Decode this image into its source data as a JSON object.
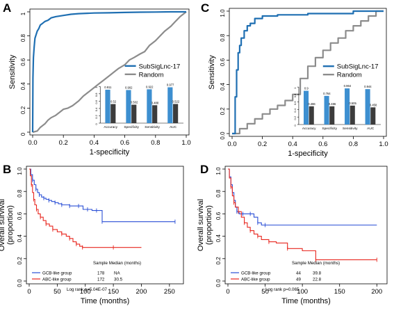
{
  "colors": {
    "blue": "#1f6fb2",
    "grey": "#8c8c8c",
    "darkgrey": "#555555",
    "km_blue": "#2a4fd6",
    "km_red": "#e8261e",
    "barblue": "#3d8fd0",
    "bargrey": "#3c3c3c",
    "axis": "#000000"
  },
  "chart_data": [
    {
      "panel": "A",
      "type": "line",
      "xlabel": "1-specificity",
      "ylabel": "Sensitivity",
      "xlim": [
        0,
        1
      ],
      "ylim": [
        0,
        1
      ],
      "xticks": [
        "0.0",
        "0.2",
        "0.4",
        "0.6",
        "0.8",
        "1.0"
      ],
      "yticks": [
        "0",
        "0.2",
        "0.4",
        "0.6",
        "0.8",
        "1"
      ],
      "legend": {
        "placement": "right",
        "entries": [
          "SubSigLnc-17",
          "Random"
        ]
      },
      "series": [
        {
          "name": "SubSigLnc-17",
          "color": "blue",
          "x": [
            0,
            0.002,
            0.005,
            0.01,
            0.015,
            0.02,
            0.03,
            0.04,
            0.05,
            0.06,
            0.08,
            0.1,
            0.12,
            0.15,
            0.2,
            0.25,
            0.3,
            0.4,
            0.5,
            0.6,
            0.7,
            0.8,
            0.9,
            1.0
          ],
          "y": [
            0,
            0.45,
            0.62,
            0.71,
            0.78,
            0.8,
            0.84,
            0.86,
            0.89,
            0.9,
            0.92,
            0.93,
            0.95,
            0.96,
            0.97,
            0.98,
            0.985,
            0.99,
            0.992,
            0.995,
            0.997,
            0.998,
            1.0,
            1.0
          ]
        },
        {
          "name": "Random",
          "color": "grey",
          "x": [
            0,
            0.03,
            0.05,
            0.08,
            0.1,
            0.12,
            0.15,
            0.18,
            0.2,
            0.23,
            0.26,
            0.3,
            0.33,
            0.36,
            0.4,
            0.43,
            0.46,
            0.5,
            0.53,
            0.56,
            0.6,
            0.63,
            0.66,
            0.7,
            0.73,
            0.76,
            0.8,
            0.83,
            0.86,
            0.9,
            0.93,
            0.96,
            1.0
          ],
          "y": [
            0,
            0.01,
            0.04,
            0.07,
            0.1,
            0.12,
            0.14,
            0.17,
            0.19,
            0.2,
            0.22,
            0.26,
            0.3,
            0.33,
            0.37,
            0.4,
            0.43,
            0.47,
            0.5,
            0.53,
            0.56,
            0.6,
            0.62,
            0.65,
            0.67,
            0.72,
            0.76,
            0.8,
            0.84,
            0.88,
            0.92,
            0.96,
            1.0
          ]
        }
      ],
      "inset": {
        "type": "bar",
        "categories": [
          "Accuracy",
          "Specificity",
          "Sensitivity",
          "AUC"
        ],
        "yticks": [
          "0",
          "0.2",
          "0.4",
          "0.6",
          "0.8",
          "1"
        ],
        "series": [
          {
            "color": "barblue",
            "values": [
              0.911,
              0.902,
              0.922,
              0.977
            ],
            "labels": [
              "0.911",
              "0.902",
              "0.922",
              "0.977"
            ]
          },
          {
            "color": "bargrey",
            "values": [
              0.52,
              0.502,
              0.488,
              0.522
            ],
            "labels": [
              "0.52",
              "0.502",
              "0.488",
              "0.522"
            ]
          }
        ]
      }
    },
    {
      "panel": "C",
      "type": "line",
      "xlabel": "1-specificity",
      "ylabel": "Sensitivity",
      "xlim": [
        0,
        1
      ],
      "ylim": [
        0,
        1
      ],
      "xticks": [
        "0.0",
        "0.2",
        "0.4",
        "0.6",
        "0.8",
        "1.0"
      ],
      "yticks": [
        "0.0",
        "0.2",
        "0.4",
        "0.6",
        "0.8",
        "1.0"
      ],
      "legend": {
        "placement": "right",
        "entries": [
          "SubSigLnc-17",
          "Random"
        ]
      },
      "series": [
        {
          "name": "SubSigLnc-17",
          "color": "blue",
          "x": [
            0,
            0.02,
            0.02,
            0.03,
            0.03,
            0.04,
            0.04,
            0.05,
            0.05,
            0.06,
            0.06,
            0.08,
            0.08,
            0.1,
            0.1,
            0.12,
            0.12,
            0.15,
            0.15,
            0.2,
            0.2,
            0.3,
            0.3,
            0.5,
            0.5,
            0.8,
            0.8,
            1.0
          ],
          "y": [
            0,
            0,
            0.3,
            0.3,
            0.52,
            0.52,
            0.66,
            0.66,
            0.72,
            0.72,
            0.78,
            0.78,
            0.84,
            0.84,
            0.88,
            0.88,
            0.9,
            0.9,
            0.94,
            0.94,
            0.96,
            0.96,
            0.97,
            0.97,
            0.98,
            0.98,
            1.0,
            1.0
          ]
        },
        {
          "name": "Random",
          "color": "grey",
          "x": [
            0,
            0.05,
            0.05,
            0.1,
            0.1,
            0.15,
            0.15,
            0.2,
            0.2,
            0.25,
            0.25,
            0.3,
            0.3,
            0.35,
            0.35,
            0.4,
            0.4,
            0.45,
            0.45,
            0.5,
            0.5,
            0.55,
            0.55,
            0.6,
            0.6,
            0.65,
            0.65,
            0.7,
            0.7,
            0.75,
            0.75,
            0.8,
            0.8,
            0.85,
            0.85,
            0.9,
            0.9,
            0.95,
            0.95,
            1.0
          ],
          "y": [
            0,
            0,
            0.04,
            0.04,
            0.08,
            0.08,
            0.12,
            0.12,
            0.16,
            0.16,
            0.2,
            0.2,
            0.23,
            0.23,
            0.27,
            0.27,
            0.32,
            0.32,
            0.45,
            0.45,
            0.55,
            0.55,
            0.62,
            0.62,
            0.68,
            0.68,
            0.74,
            0.74,
            0.78,
            0.78,
            0.84,
            0.84,
            0.88,
            0.88,
            0.92,
            0.92,
            0.96,
            0.96,
            1.0,
            1.0
          ]
        }
      ],
      "inset": {
        "type": "bar",
        "categories": [
          "Accuracy",
          "Specificity",
          "Sensitivity",
          "AUC"
        ],
        "yticks": [
          "0",
          "0.2",
          "0.4",
          "0.6",
          "0.8",
          "1"
        ],
        "series": [
          {
            "color": "barblue",
            "values": [
              0.9,
              0.764,
              0.964,
              0.944
            ],
            "labels": [
              "0.9",
              "0.764",
              "0.964",
              "0.944"
            ]
          },
          {
            "color": "bargrey",
            "values": [
              0.486,
              0.486,
              0.505,
              0.458
            ],
            "labels": [
              "0.486",
              "0.486",
              "0.505",
              "0.458"
            ]
          }
        ]
      }
    },
    {
      "panel": "B",
      "type": "line",
      "xlabel": "Time (months)",
      "ylabel": "Overall survival\n(proportion)",
      "xlim": [
        0,
        270
      ],
      "ylim": [
        0,
        1
      ],
      "xticks": [
        "0",
        "50",
        "100",
        "150",
        "200",
        "250"
      ],
      "yticks": [
        "0.0",
        "0.2",
        "0.4",
        "0.6",
        "0.8",
        "1.0"
      ],
      "legend": {
        "placement": "bottom-left",
        "header": "Sample  Median (months)",
        "entries": [
          {
            "name": "GCB-like group",
            "color": "km_blue",
            "n": "178",
            "median": "NA"
          },
          {
            "name": "ABC-like group",
            "color": "km_red",
            "n": "172",
            "median": "30.5"
          }
        ],
        "note": "Log rank p=5.04E-07"
      },
      "series": [
        {
          "name": "GCB-like group",
          "color": "km_blue",
          "x": [
            0,
            3,
            6,
            9,
            12,
            15,
            18,
            22,
            26,
            30,
            35,
            40,
            46,
            52,
            58,
            65,
            72,
            80,
            88,
            96,
            104,
            112,
            120,
            126,
            130,
            180,
            260
          ],
          "y": [
            1.0,
            0.95,
            0.9,
            0.86,
            0.82,
            0.79,
            0.77,
            0.75,
            0.74,
            0.73,
            0.72,
            0.71,
            0.7,
            0.69,
            0.68,
            0.68,
            0.67,
            0.67,
            0.67,
            0.64,
            0.64,
            0.63,
            0.63,
            0.63,
            0.53,
            0.53,
            0.53
          ]
        },
        {
          "name": "ABC-like group",
          "color": "km_red",
          "x": [
            0,
            2,
            4,
            6,
            8,
            10,
            13,
            16,
            20,
            25,
            30,
            36,
            42,
            50,
            58,
            66,
            72,
            78,
            84,
            90,
            95,
            100,
            150,
            200
          ],
          "y": [
            1.0,
            0.94,
            0.86,
            0.79,
            0.73,
            0.68,
            0.64,
            0.6,
            0.57,
            0.54,
            0.51,
            0.49,
            0.46,
            0.44,
            0.42,
            0.4,
            0.38,
            0.35,
            0.33,
            0.31,
            0.3,
            0.3,
            0.3,
            0.3
          ]
        }
      ]
    },
    {
      "panel": "D",
      "type": "line",
      "xlabel": "Time (months)",
      "ylabel": "Overall survival\n(proportion)",
      "xlim": [
        0,
        210
      ],
      "ylim": [
        0,
        1
      ],
      "xticks": [
        "0",
        "50",
        "100",
        "150",
        "200"
      ],
      "yticks": [
        "0.0",
        "0.2",
        "0.4",
        "0.6",
        "0.8",
        "1.0"
      ],
      "legend": {
        "placement": "bottom-left",
        "header": "Sample  Median (months)",
        "entries": [
          {
            "name": "GCB-like group",
            "color": "km_blue",
            "n": "44",
            "median": "39.8"
          },
          {
            "name": "ABC-like group",
            "color": "km_red",
            "n": "49",
            "median": "22.8"
          }
        ],
        "note": "Log rank p=0.065"
      },
      "series": [
        {
          "name": "GCB-like group",
          "color": "km_blue",
          "x": [
            0,
            2,
            4,
            6,
            8,
            10,
            12,
            15,
            20,
            25,
            30,
            35,
            40,
            45,
            50,
            200
          ],
          "y": [
            1.0,
            0.93,
            0.86,
            0.79,
            0.72,
            0.66,
            0.62,
            0.6,
            0.6,
            0.6,
            0.6,
            0.57,
            0.52,
            0.5,
            0.5,
            0.5
          ]
        },
        {
          "name": "ABC-like group",
          "color": "km_red",
          "x": [
            0,
            2,
            4,
            6,
            8,
            10,
            14,
            18,
            22,
            26,
            30,
            35,
            40,
            45,
            55,
            65,
            80,
            100,
            118,
            150,
            200
          ],
          "y": [
            1.0,
            0.92,
            0.84,
            0.76,
            0.7,
            0.66,
            0.62,
            0.57,
            0.52,
            0.48,
            0.45,
            0.42,
            0.4,
            0.37,
            0.35,
            0.34,
            0.29,
            0.27,
            0.19,
            0.19,
            0.19
          ]
        }
      ]
    }
  ]
}
